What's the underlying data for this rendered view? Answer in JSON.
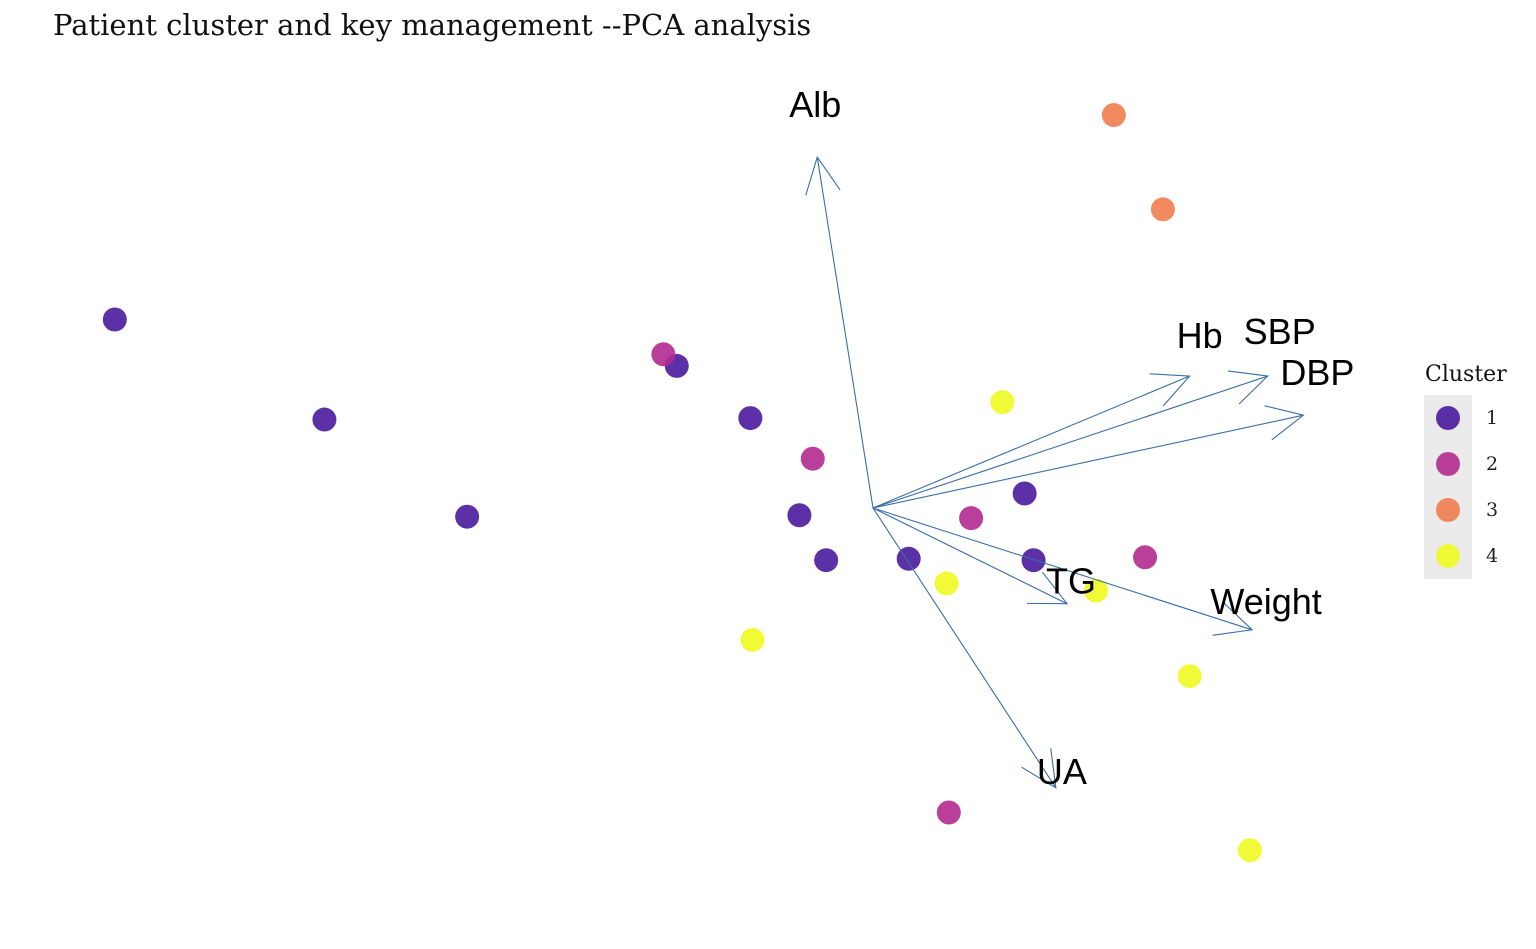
{
  "title": "Patient cluster and key management --PCA analysis",
  "chart_data": {
    "type": "scatter",
    "title": "Patient cluster and key management --PCA analysis",
    "xlabel": "",
    "ylabel": "",
    "xlim": [
      -3.8,
      3.0
    ],
    "ylim": [
      -2.5,
      2.5
    ],
    "grid": false,
    "legend": {
      "title": "Cluster",
      "position": "right"
    },
    "clusters": [
      {
        "name": "1",
        "color": "#4a1a9c"
      },
      {
        "name": "2",
        "color": "#b12a90"
      },
      {
        "name": "3",
        "color": "#ef7d4e"
      },
      {
        "name": "4",
        "color": "#f0f921"
      }
    ],
    "points": [
      {
        "x": -3.4,
        "y": 1.3,
        "cluster": "1"
      },
      {
        "x": -2.46,
        "y": 0.61,
        "cluster": "1"
      },
      {
        "x": -1.82,
        "y": -0.06,
        "cluster": "1"
      },
      {
        "x": -0.88,
        "y": 0.98,
        "cluster": "1"
      },
      {
        "x": -0.55,
        "y": 0.62,
        "cluster": "1"
      },
      {
        "x": -0.33,
        "y": -0.05,
        "cluster": "1"
      },
      {
        "x": -0.21,
        "y": -0.36,
        "cluster": "1"
      },
      {
        "x": 0.16,
        "y": -0.35,
        "cluster": "1"
      },
      {
        "x": 0.68,
        "y": 0.1,
        "cluster": "1"
      },
      {
        "x": 0.72,
        "y": -0.36,
        "cluster": "1"
      },
      {
        "x": -0.94,
        "y": 1.06,
        "cluster": "2"
      },
      {
        "x": -0.27,
        "y": 0.34,
        "cluster": "2"
      },
      {
        "x": 0.44,
        "y": -0.07,
        "cluster": "2"
      },
      {
        "x": 1.22,
        "y": -0.34,
        "cluster": "2"
      },
      {
        "x": 0.34,
        "y": -2.1,
        "cluster": "2"
      },
      {
        "x": 1.08,
        "y": 2.71,
        "cluster": "3"
      },
      {
        "x": 1.3,
        "y": 2.06,
        "cluster": "3"
      },
      {
        "x": 0.58,
        "y": 0.73,
        "cluster": "4"
      },
      {
        "x": 0.33,
        "y": -0.52,
        "cluster": "4"
      },
      {
        "x": 1.0,
        "y": -0.57,
        "cluster": "4"
      },
      {
        "x": -0.54,
        "y": -0.91,
        "cluster": "4"
      },
      {
        "x": 1.42,
        "y": -1.16,
        "cluster": "4"
      },
      {
        "x": 1.69,
        "y": -2.36,
        "cluster": "4"
      }
    ],
    "loadings": [
      {
        "name": "Alb",
        "x": -0.25,
        "y": 2.42
      },
      {
        "name": "Hb",
        "x": 1.42,
        "y": 0.91
      },
      {
        "name": "SBP",
        "x": 1.77,
        "y": 0.91
      },
      {
        "name": "DBP",
        "x": 1.93,
        "y": 0.64
      },
      {
        "name": "TG",
        "x": 0.87,
        "y": -0.66
      },
      {
        "name": "Weight",
        "x": 1.7,
        "y": -0.84
      },
      {
        "name": "UA",
        "x": 0.82,
        "y": -1.93
      }
    ],
    "loading_color": "#3a6ea5"
  }
}
